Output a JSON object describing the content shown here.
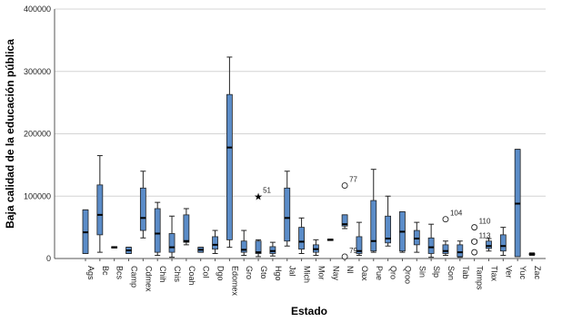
{
  "chart_data": {
    "type": "boxplot",
    "xlabel": "Estado",
    "ylabel": "Baja calidad de la educación pública",
    "ylim": [
      0,
      400000
    ],
    "yticks": [
      0,
      100000,
      200000,
      300000,
      400000
    ],
    "ytick_labels": [
      "0",
      "100000",
      "200000",
      "300000",
      "400000"
    ],
    "grid": true,
    "box_color": "#5b8cc8",
    "categories": [
      "Ags",
      "Bc",
      "Bcs",
      "Camp",
      "Cdmex",
      "Chih",
      "Chis",
      "Coah",
      "Col",
      "Dgo",
      "Edomex",
      "Gro",
      "Gto",
      "Hgo",
      "Jal",
      "Mich",
      "Mor",
      "Nay",
      "Nl",
      "Oax",
      "Pue",
      "Qro",
      "Qroo",
      "Sin",
      "Slp",
      "Son",
      "Tab",
      "Tamps",
      "Tlax",
      "Ver",
      "Yuc",
      "Zac"
    ],
    "boxes": [
      {
        "min": 8000,
        "q1": 8000,
        "median": 42000,
        "q3": 78000,
        "max": 78000
      },
      {
        "min": 10000,
        "q1": 38000,
        "median": 70000,
        "q3": 118000,
        "max": 165000
      },
      {
        "min": 17000,
        "q1": 17000,
        "median": 18000,
        "q3": 19000,
        "max": 19000
      },
      {
        "min": 8000,
        "q1": 8000,
        "median": 13000,
        "q3": 18000,
        "max": 18000
      },
      {
        "min": 33000,
        "q1": 45000,
        "median": 65000,
        "q3": 113000,
        "max": 140000
      },
      {
        "min": 5000,
        "q1": 10000,
        "median": 40000,
        "q3": 80000,
        "max": 90000
      },
      {
        "min": 2000,
        "q1": 10000,
        "median": 18000,
        "q3": 40000,
        "max": 68000
      },
      {
        "min": 22000,
        "q1": 26000,
        "median": 28000,
        "q3": 70000,
        "max": 80000
      },
      {
        "min": 10000,
        "q1": 10000,
        "median": 14000,
        "q3": 18000,
        "max": 18000
      },
      {
        "min": 8000,
        "q1": 15000,
        "median": 22000,
        "q3": 35000,
        "max": 45000
      },
      {
        "min": 18000,
        "q1": 30000,
        "median": 178000,
        "q3": 263000,
        "max": 323000
      },
      {
        "min": 5000,
        "q1": 10000,
        "median": 14000,
        "q3": 28000,
        "max": 45000
      },
      {
        "min": 3000,
        "q1": 8000,
        "median": 10000,
        "q3": 28000,
        "max": 30000
      },
      {
        "min": 4000,
        "q1": 8000,
        "median": 12000,
        "q3": 19000,
        "max": 26000
      },
      {
        "min": 20000,
        "q1": 28000,
        "median": 65000,
        "q3": 113000,
        "max": 140000
      },
      {
        "min": 8000,
        "q1": 15000,
        "median": 27000,
        "q3": 50000,
        "max": 65000
      },
      {
        "min": 5000,
        "q1": 10000,
        "median": 15000,
        "q3": 22000,
        "max": 30000
      },
      {
        "min": 29000,
        "q1": 30000,
        "median": 30000,
        "q3": 31000,
        "max": 31000
      },
      {
        "min": 48000,
        "q1": 52000,
        "median": 55000,
        "q3": 70000,
        "max": 70000
      },
      {
        "min": 5000,
        "q1": 8000,
        "median": 12000,
        "q3": 35000,
        "max": 58000
      },
      {
        "min": 10000,
        "q1": 12000,
        "median": 28000,
        "q3": 93000,
        "max": 143000
      },
      {
        "min": 20000,
        "q1": 25000,
        "median": 32000,
        "q3": 68000,
        "max": 100000
      },
      {
        "min": 10000,
        "q1": 12000,
        "median": 43000,
        "q3": 75000,
        "max": 75000
      },
      {
        "min": 10000,
        "q1": 22000,
        "median": 32000,
        "q3": 45000,
        "max": 58000
      },
      {
        "min": 2000,
        "q1": 8000,
        "median": 18000,
        "q3": 33000,
        "max": 55000
      },
      {
        "min": 5000,
        "q1": 8000,
        "median": 12000,
        "q3": 22000,
        "max": 28000
      },
      {
        "min": 2000,
        "q1": 3000,
        "median": 10000,
        "q3": 22000,
        "max": 28000
      },
      {
        "min": 25000,
        "q1": 26000,
        "median": 27000,
        "q3": 29000,
        "max": 30000
      },
      {
        "min": 12000,
        "q1": 16000,
        "median": 20000,
        "q3": 28000,
        "max": 32000
      },
      {
        "min": 5000,
        "q1": 12000,
        "median": 20000,
        "q3": 38000,
        "max": 50000
      },
      {
        "min": 3000,
        "q1": 3000,
        "median": 88000,
        "q3": 175000,
        "max": 175000
      },
      {
        "min": 5000,
        "q1": 6000,
        "median": 7000,
        "q3": 8000,
        "max": 9000
      }
    ],
    "outliers": [
      {
        "category": "Gto",
        "value": 100000,
        "label": "51",
        "symbol": "star"
      },
      {
        "category": "Nl",
        "value": 117000,
        "label": "77",
        "symbol": "circle"
      },
      {
        "category": "Nl",
        "value": 3000,
        "label": "79",
        "symbol": "circle"
      },
      {
        "category": "Son",
        "value": 63000,
        "label": "104",
        "symbol": "circle"
      },
      {
        "category": "Tamps",
        "value": 50000,
        "label": "110",
        "symbol": "circle"
      },
      {
        "category": "Tamps",
        "value": 10000,
        "label": "",
        "symbol": "circle"
      },
      {
        "category": "Tamps",
        "value": 27000,
        "label": "113",
        "symbol": "circle"
      }
    ]
  }
}
